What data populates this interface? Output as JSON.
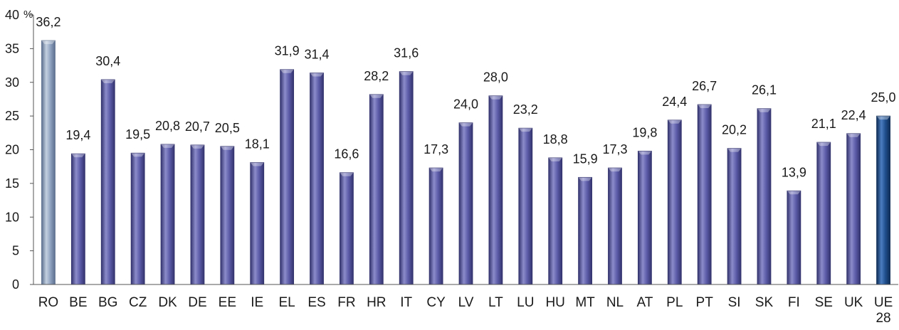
{
  "chart_data": {
    "type": "bar",
    "unit": "%",
    "ylim": [
      0,
      40
    ],
    "yticks": [
      0,
      5,
      10,
      15,
      20,
      25,
      30,
      35,
      40
    ],
    "grid": false,
    "legend": "none",
    "categories": [
      "RO",
      "BE",
      "BG",
      "CZ",
      "DK",
      "DE",
      "EE",
      "IE",
      "EL",
      "ES",
      "FR",
      "HR",
      "IT",
      "CY",
      "LV",
      "LT",
      "LU",
      "HU",
      "MT",
      "NL",
      "AT",
      "PL",
      "PT",
      "SI",
      "SK",
      "FI",
      "SE",
      "UK",
      "UE 28"
    ],
    "values": [
      36.2,
      19.4,
      30.4,
      19.5,
      20.8,
      20.7,
      20.5,
      18.1,
      31.9,
      31.4,
      16.6,
      28.2,
      31.6,
      17.3,
      24.0,
      28.0,
      23.2,
      18.8,
      15.9,
      17.3,
      19.8,
      24.4,
      26.7,
      20.2,
      26.1,
      13.9,
      21.1,
      22.4,
      25.0
    ],
    "value_labels": [
      "36,2",
      "19,4",
      "30,4",
      "19,5",
      "20,8",
      "20,7",
      "20,5",
      "18,1",
      "31,9",
      "31,4",
      "16,6",
      "28,2",
      "31,6",
      "17,3",
      "24,0",
      "28,0",
      "23,2",
      "18,8",
      "15,9",
      "17,3",
      "19,8",
      "24,4",
      "26,7",
      "20,2",
      "26,1",
      "13,9",
      "21,1",
      "22,4",
      "25,0"
    ],
    "colors": {
      "default": "#5B5BA8",
      "default_light": "#8C8CCB",
      "default_dark": "#33336E",
      "highlight_first": "#8FA3C0",
      "highlight_first_light": "#C4D0E0",
      "highlight_first_dark": "#5C6F8E",
      "highlight_last": "#1F4E8C",
      "highlight_last_light": "#4B7DC0",
      "highlight_last_dark": "#0E2C55",
      "axis": "#555555"
    }
  }
}
